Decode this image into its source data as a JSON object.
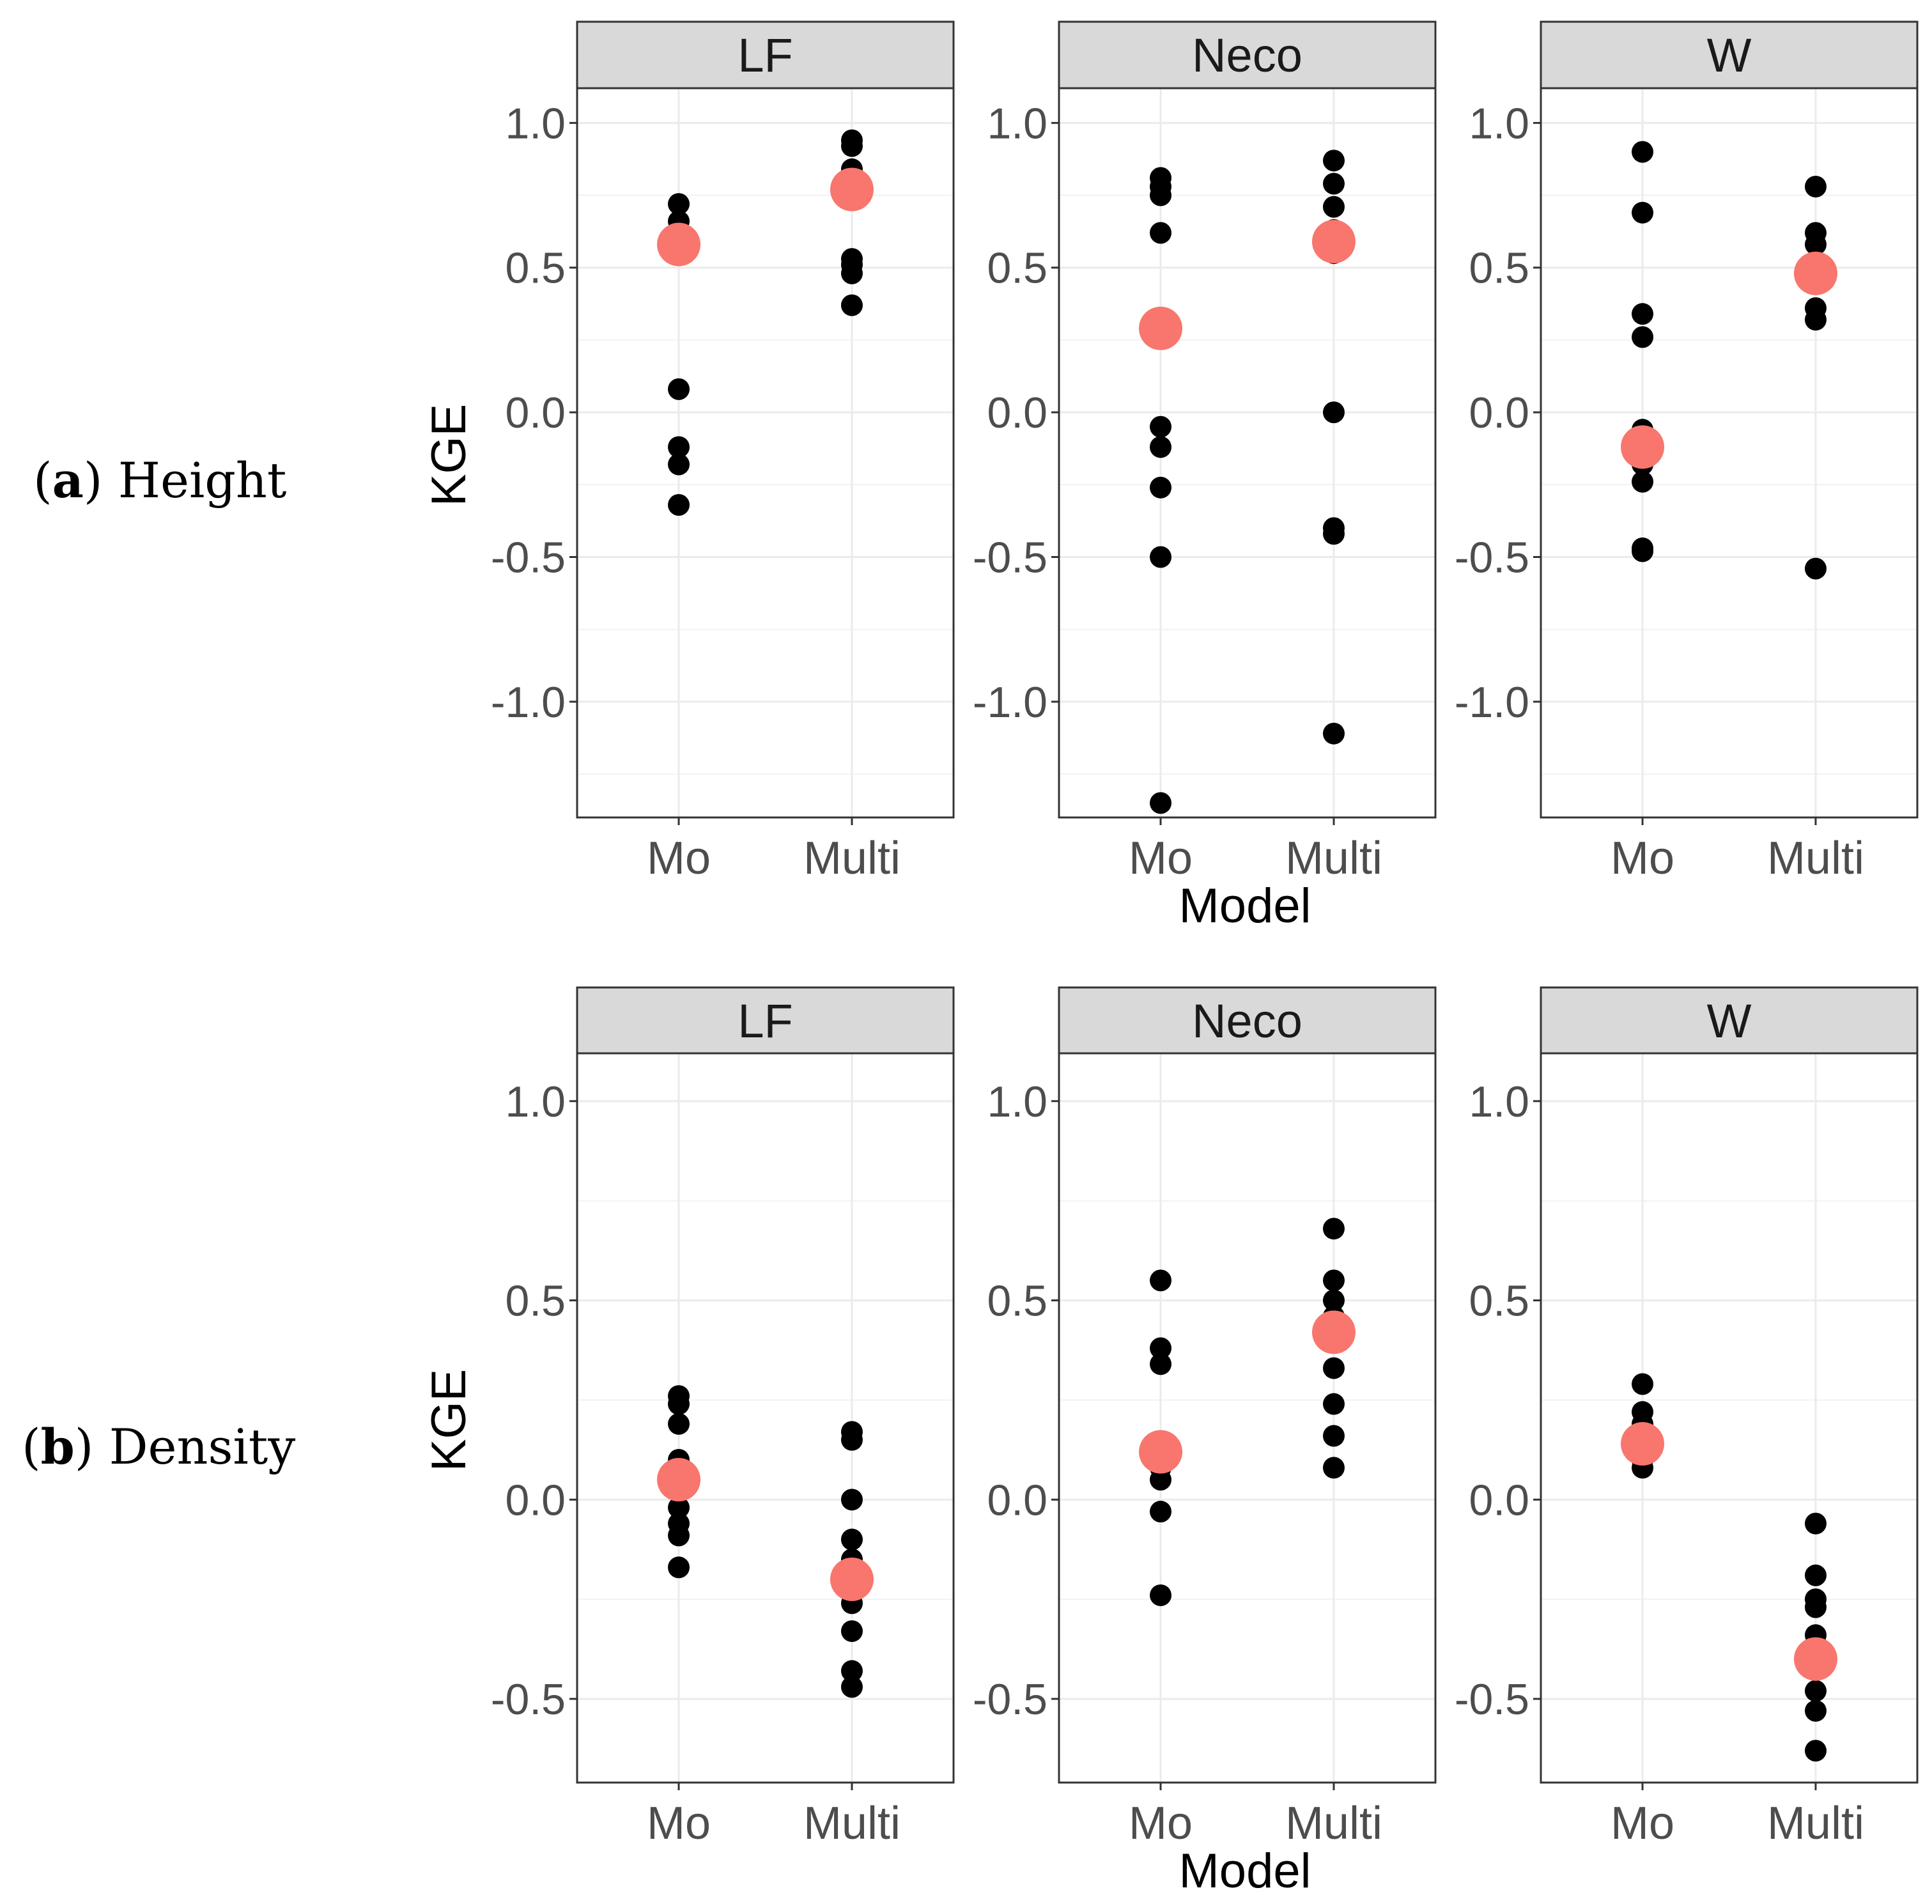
{
  "row_labels": [
    {
      "letter": "a",
      "text": "Height"
    },
    {
      "letter": "b",
      "text": "Density"
    }
  ],
  "colors": {
    "panel_border": "#333333",
    "strip_fill": "#d9d9d9",
    "grid_major": "#ebebeb",
    "grid_minor": "#f2f2f2",
    "point": "#000000",
    "mean_point": "#f8766d",
    "tick_text": "#4d4d4d"
  },
  "chart_data": [
    {
      "type": "scatter",
      "xlabel": "Model",
      "ylabel": "KGE",
      "categories": [
        "Mo",
        "Multi"
      ],
      "ylim": [
        -1.4,
        1.12
      ],
      "yticks": [
        "1.0",
        "0.5",
        "0.0",
        "-0.5",
        "-1.0"
      ],
      "ytick_values": [
        1.0,
        0.5,
        0.0,
        -0.5,
        -1.0
      ],
      "facets": [
        {
          "strip": "LF",
          "points": [
            {
              "x": "Mo",
              "values": [
                0.72,
                0.66,
                0.58,
                0.08,
                -0.12,
                -0.18,
                -0.32
              ]
            },
            {
              "x": "Multi",
              "values": [
                0.94,
                0.92,
                0.84,
                0.78,
                0.53,
                0.51,
                0.48,
                0.37
              ]
            }
          ],
          "means": [
            {
              "x": "Mo",
              "value": 0.58
            },
            {
              "x": "Multi",
              "value": 0.77
            }
          ]
        },
        {
          "strip": "Neco",
          "points": [
            {
              "x": "Mo",
              "values": [
                0.81,
                0.78,
                0.75,
                0.62,
                -0.05,
                -0.12,
                -0.26,
                -0.5,
                -1.35
              ]
            },
            {
              "x": "Multi",
              "values": [
                0.87,
                0.79,
                0.71,
                0.63,
                0.55,
                0.0,
                -0.4,
                -0.42,
                -1.11
              ]
            }
          ],
          "means": [
            {
              "x": "Mo",
              "value": 0.29
            },
            {
              "x": "Multi",
              "value": 0.59
            }
          ]
        },
        {
          "strip": "W",
          "points": [
            {
              "x": "Mo",
              "values": [
                0.9,
                0.69,
                0.34,
                0.26,
                -0.06,
                -0.18,
                -0.24,
                -0.47,
                -0.48
              ]
            },
            {
              "x": "Multi",
              "values": [
                0.78,
                0.62,
                0.58,
                0.5,
                0.45,
                0.36,
                0.32,
                -0.54
              ]
            }
          ],
          "means": [
            {
              "x": "Mo",
              "value": -0.12
            },
            {
              "x": "Multi",
              "value": 0.48
            }
          ]
        }
      ]
    },
    {
      "type": "scatter",
      "xlabel": "Model",
      "ylabel": "KGE",
      "categories": [
        "Mo",
        "Multi"
      ],
      "ylim": [
        -0.71,
        1.12
      ],
      "yticks": [
        "1.0",
        "0.5",
        "0.0",
        "-0.5"
      ],
      "ytick_values": [
        1.0,
        0.5,
        0.0,
        -0.5
      ],
      "facets": [
        {
          "strip": "LF",
          "points": [
            {
              "x": "Mo",
              "values": [
                0.26,
                0.24,
                0.19,
                0.1,
                0.06,
                0.02,
                -0.02,
                -0.06,
                -0.09,
                -0.17
              ]
            },
            {
              "x": "Multi",
              "values": [
                0.17,
                0.15,
                0.0,
                -0.1,
                -0.15,
                -0.19,
                -0.26,
                -0.33,
                -0.43,
                -0.47
              ]
            }
          ],
          "means": [
            {
              "x": "Mo",
              "value": 0.05
            },
            {
              "x": "Multi",
              "value": -0.2
            }
          ]
        },
        {
          "strip": "Neco",
          "points": [
            {
              "x": "Mo",
              "values": [
                0.55,
                0.38,
                0.34,
                0.1,
                0.08,
                0.05,
                -0.03,
                -0.24
              ]
            },
            {
              "x": "Multi",
              "values": [
                0.68,
                0.55,
                0.5,
                0.46,
                0.33,
                0.24,
                0.16,
                0.08
              ]
            }
          ],
          "means": [
            {
              "x": "Mo",
              "value": 0.12
            },
            {
              "x": "Multi",
              "value": 0.42
            }
          ]
        },
        {
          "strip": "W",
          "points": [
            {
              "x": "Mo",
              "values": [
                0.29,
                0.22,
                0.19,
                0.15,
                0.12,
                0.1,
                0.08
              ]
            },
            {
              "x": "Multi",
              "values": [
                -0.06,
                -0.19,
                -0.25,
                -0.27,
                -0.34,
                -0.42,
                -0.48,
                -0.53,
                -0.63
              ]
            }
          ],
          "means": [
            {
              "x": "Mo",
              "value": 0.14
            },
            {
              "x": "Multi",
              "value": -0.4
            }
          ]
        }
      ]
    }
  ]
}
